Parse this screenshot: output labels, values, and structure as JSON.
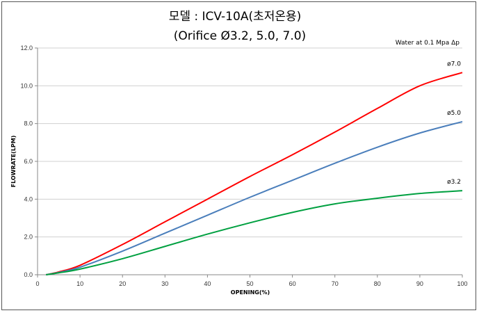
{
  "chart_data": {
    "type": "line",
    "title": "모델 :  ICV-10A(초저온용)",
    "subtitle": "(Orifice Ø3.2, 5.0, 7.0)",
    "annotation": "Water at 0.1 Mpa Δp",
    "xlabel": "OPENING(%)",
    "ylabel": "FLOWRATE(LPM)",
    "xlim": [
      0,
      100
    ],
    "ylim": [
      0,
      12
    ],
    "xticks": [
      "0",
      "10",
      "20",
      "30",
      "40",
      "50",
      "60",
      "70",
      "80",
      "90",
      "100"
    ],
    "yticks": [
      "0.0",
      "2.0",
      "4.0",
      "6.0",
      "8.0",
      "10.0",
      "12.0"
    ],
    "grid": "horizontal",
    "x": [
      2,
      5,
      10,
      20,
      30,
      40,
      50,
      60,
      70,
      80,
      90,
      100
    ],
    "series": [
      {
        "name": "ø7.0",
        "color": "#ff0000",
        "values": [
          0.0,
          0.15,
          0.5,
          1.6,
          2.8,
          4.0,
          5.2,
          6.35,
          7.55,
          8.8,
          10.0,
          10.7
        ]
      },
      {
        "name": "ø5.0",
        "color": "#4a7ebb",
        "values": [
          0.0,
          0.12,
          0.4,
          1.25,
          2.2,
          3.15,
          4.1,
          5.0,
          5.9,
          6.75,
          7.5,
          8.1
        ]
      },
      {
        "name": "ø3.2",
        "color": "#00a040",
        "values": [
          0.0,
          0.1,
          0.3,
          0.85,
          1.5,
          2.15,
          2.75,
          3.3,
          3.75,
          4.05,
          4.3,
          4.45
        ]
      }
    ]
  }
}
